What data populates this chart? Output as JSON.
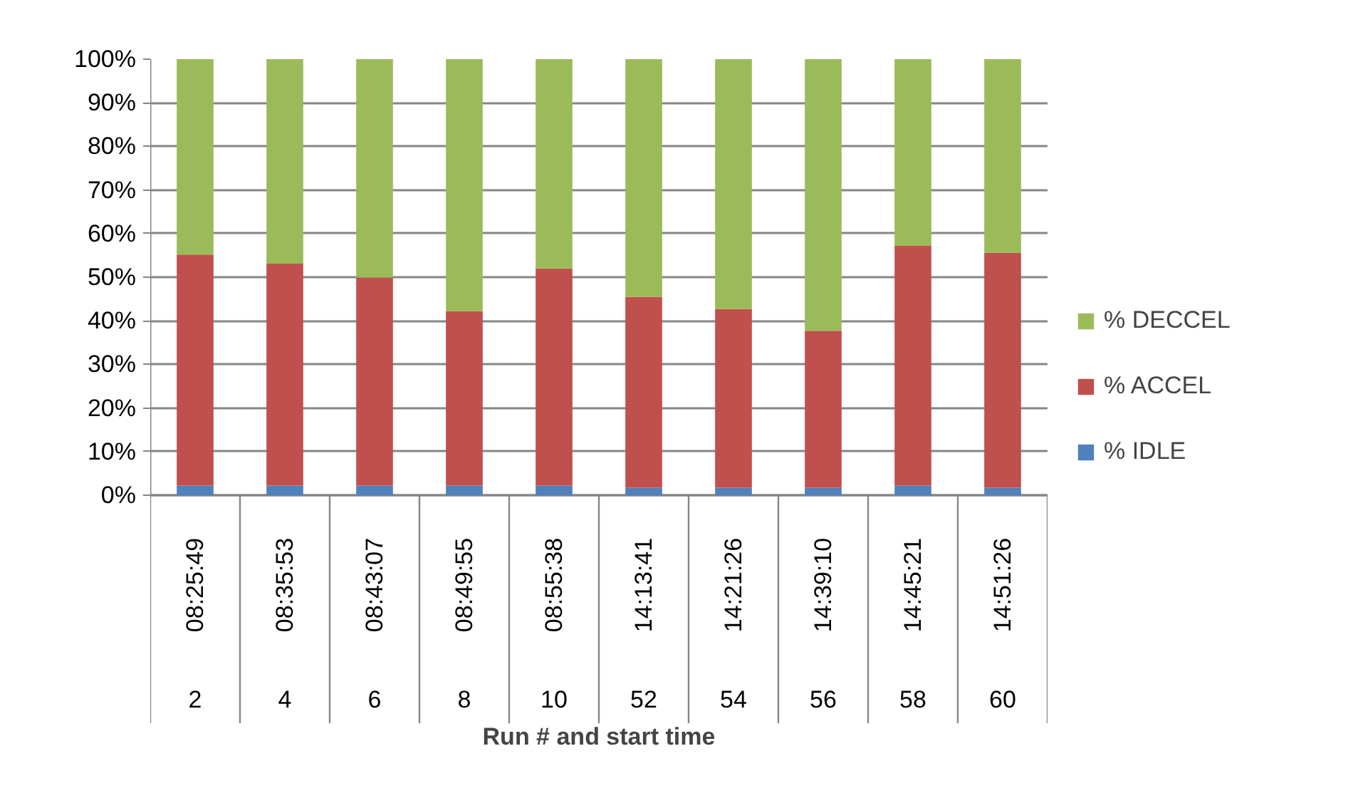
{
  "chart_data": {
    "type": "bar",
    "stacked": true,
    "xlabel": "Run # and start time",
    "categories": [
      "08:25:49",
      "08:35:53",
      "08:43:07",
      "08:49:55",
      "08:55:38",
      "14:13:41",
      "14:21:26",
      "14:39:10",
      "14:45:21",
      "14:51:26"
    ],
    "series": [
      {
        "name": "% IDLE",
        "color": "#4f81bd",
        "values": [
          2.2,
          2.2,
          2.2,
          2.2,
          2.2,
          1.7,
          1.7,
          1.7,
          2.2,
          1.7
        ]
      },
      {
        "name": "% ACCEL",
        "color": "#c0504d",
        "values": [
          53.0,
          50.9,
          47.7,
          40.0,
          49.8,
          43.8,
          41.0,
          36.0,
          55.0,
          53.9
        ]
      },
      {
        "name": "% DECCEL",
        "color": "#9bbb59",
        "values": [
          44.8,
          46.9,
          50.1,
          57.8,
          48.0,
          54.5,
          57.3,
          62.3,
          42.8,
          44.4
        ]
      }
    ],
    "ylim": [
      0,
      100
    ],
    "yticks": [
      {
        "value": 0,
        "label": "0%"
      },
      {
        "value": 10,
        "label": "10%"
      },
      {
        "value": 20,
        "label": "20%"
      },
      {
        "value": 30,
        "label": "30%"
      },
      {
        "value": 40,
        "label": "40%"
      },
      {
        "value": 50,
        "label": "50%"
      },
      {
        "value": 60,
        "label": "60%"
      },
      {
        "value": 70,
        "label": "70%"
      },
      {
        "value": 80,
        "label": "80%"
      },
      {
        "value": 90,
        "label": "90%"
      },
      {
        "value": 100,
        "label": "100%"
      }
    ],
    "annotations": [
      "2",
      "4",
      "6",
      "8",
      "10",
      "52",
      "54",
      "56",
      "58",
      "60"
    ],
    "grid": "y",
    "legend": "right"
  }
}
